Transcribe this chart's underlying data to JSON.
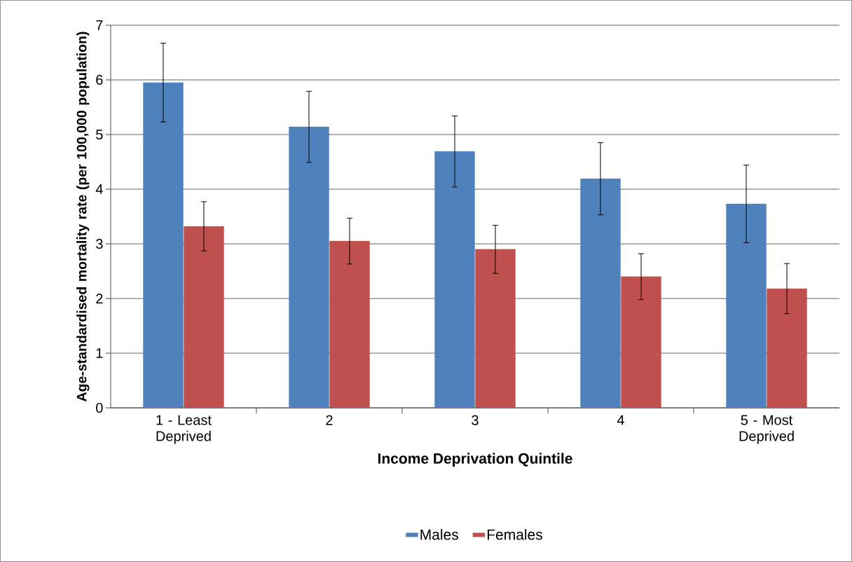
{
  "chart_data": {
    "type": "bar",
    "xlabel": "Income Deprivation Quintile",
    "ylabel": "Age-standardised mortality rate (per 100,000 population)",
    "categories": [
      "1 - Least Deprived",
      "2",
      "3",
      "4",
      "5 - Most Deprived"
    ],
    "series": [
      {
        "name": "Males",
        "color": "#4f81bd",
        "values": [
          5.95,
          5.14,
          4.69,
          4.19,
          3.73
        ],
        "errors": [
          0.72,
          0.65,
          0.65,
          0.66,
          0.71
        ]
      },
      {
        "name": "Females",
        "color": "#c0504d",
        "values": [
          3.32,
          3.05,
          2.9,
          2.4,
          2.18
        ],
        "errors": [
          0.45,
          0.42,
          0.44,
          0.42,
          0.46
        ]
      }
    ],
    "ylim": [
      0,
      7
    ],
    "yticks": [
      0,
      1,
      2,
      3,
      4,
      5,
      6,
      7
    ],
    "grid": "y",
    "legend": "bottom"
  }
}
